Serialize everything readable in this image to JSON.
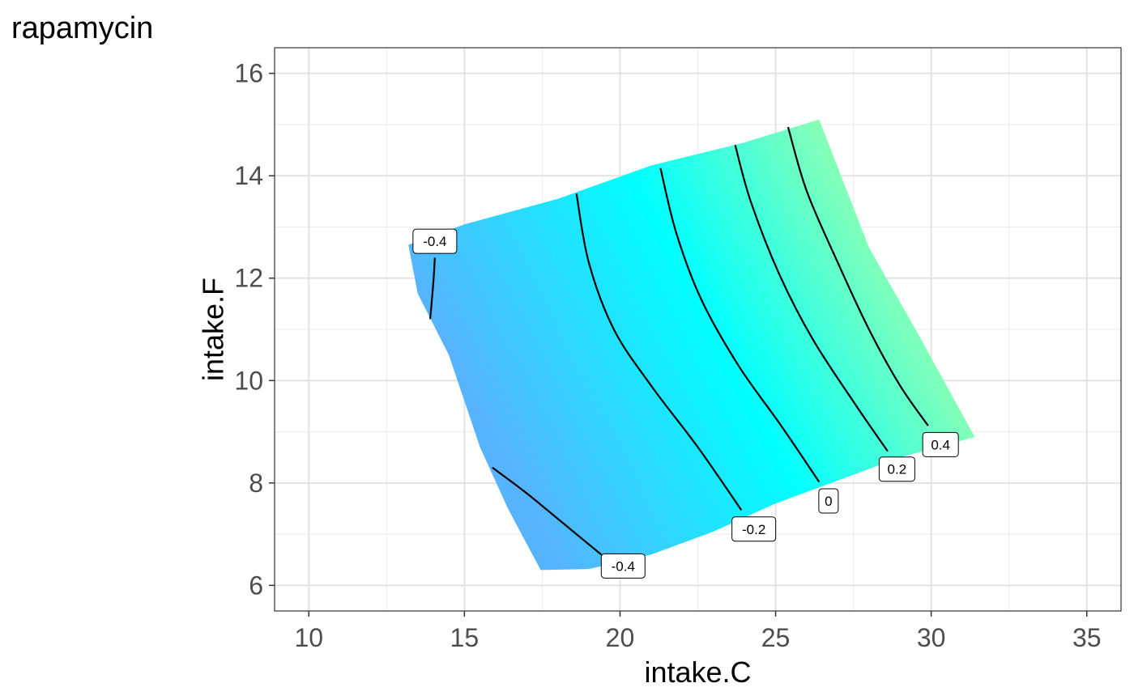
{
  "chart_data": {
    "type": "heatmap",
    "title": "rapamycin",
    "xlabel": "intake.C",
    "ylabel": "intake.F",
    "xlim": [
      8.9,
      36.1
    ],
    "ylim": [
      5.5,
      16.5
    ],
    "x_ticks": [
      10,
      15,
      20,
      25,
      30,
      35
    ],
    "y_ticks": [
      6,
      8,
      10,
      12,
      14,
      16
    ],
    "x_minor": [
      12.5,
      17.5,
      22.5,
      27.5,
      32.5
    ],
    "y_minor": [
      7,
      9,
      11,
      13,
      15
    ],
    "grid": true,
    "legend": "none",
    "fill": {
      "low_value": -0.5,
      "low_color": "#56B4FF",
      "mid_value": 0,
      "mid_color": "#00FFFF",
      "high_value": 0.5,
      "high_color": "#B0FFA0"
    },
    "region_boundary": [
      [
        13.2,
        12.65
      ],
      [
        13.5,
        11.7
      ],
      [
        14.5,
        10.5
      ],
      [
        15.5,
        8.7
      ],
      [
        16.4,
        7.5
      ],
      [
        17.45,
        6.3
      ],
      [
        19.0,
        6.32
      ],
      [
        21.0,
        6.6
      ],
      [
        23.0,
        7.05
      ],
      [
        25.0,
        7.6
      ],
      [
        27.0,
        8.05
      ],
      [
        29.0,
        8.5
      ],
      [
        31.4,
        8.9
      ],
      [
        29.5,
        11.0
      ],
      [
        28.0,
        12.6
      ],
      [
        26.4,
        15.1
      ],
      [
        24.0,
        14.65
      ],
      [
        21.0,
        14.2
      ],
      [
        18.0,
        13.55
      ],
      [
        15.0,
        13.05
      ]
    ],
    "contours": [
      {
        "level": -0.4,
        "label": "-0.4",
        "points": [
          [
            13.9,
            11.2
          ],
          [
            14.0,
            11.9
          ],
          [
            14.05,
            12.4
          ]
        ],
        "label_at": [
          14.05,
          12.72
        ]
      },
      {
        "level": -0.4,
        "label": "-0.4",
        "points": [
          [
            15.9,
            8.3
          ],
          [
            17.0,
            7.8
          ],
          [
            18.2,
            7.2
          ],
          [
            19.4,
            6.6
          ]
        ],
        "label_at": [
          20.1,
          6.38
        ]
      },
      {
        "level": -0.2,
        "label": "-0.2",
        "points": [
          [
            18.6,
            13.65
          ],
          [
            19.0,
            12.3
          ],
          [
            19.8,
            11.0
          ],
          [
            21.0,
            9.9
          ],
          [
            22.5,
            8.7
          ],
          [
            23.9,
            7.47
          ]
        ],
        "label_at": [
          24.3,
          7.1
        ]
      },
      {
        "level": 0,
        "label": "0",
        "points": [
          [
            21.3,
            14.15
          ],
          [
            21.8,
            12.9
          ],
          [
            22.6,
            11.6
          ],
          [
            23.8,
            10.3
          ],
          [
            25.2,
            9.1
          ],
          [
            26.4,
            8.02
          ]
        ],
        "label_at": [
          26.7,
          7.65
        ]
      },
      {
        "level": 0.2,
        "label": "0.2",
        "points": [
          [
            23.7,
            14.6
          ],
          [
            24.2,
            13.5
          ],
          [
            25.1,
            12.1
          ],
          [
            26.2,
            10.8
          ],
          [
            27.6,
            9.5
          ],
          [
            28.6,
            8.62
          ]
        ],
        "label_at": [
          28.9,
          8.27
        ]
      },
      {
        "level": 0.4,
        "label": "0.4",
        "points": [
          [
            25.4,
            14.95
          ],
          [
            26.0,
            13.7
          ],
          [
            27.0,
            12.3
          ],
          [
            28.0,
            11.0
          ],
          [
            29.0,
            9.9
          ],
          [
            29.9,
            9.12
          ]
        ],
        "label_at": [
          30.3,
          8.75
        ]
      }
    ]
  }
}
